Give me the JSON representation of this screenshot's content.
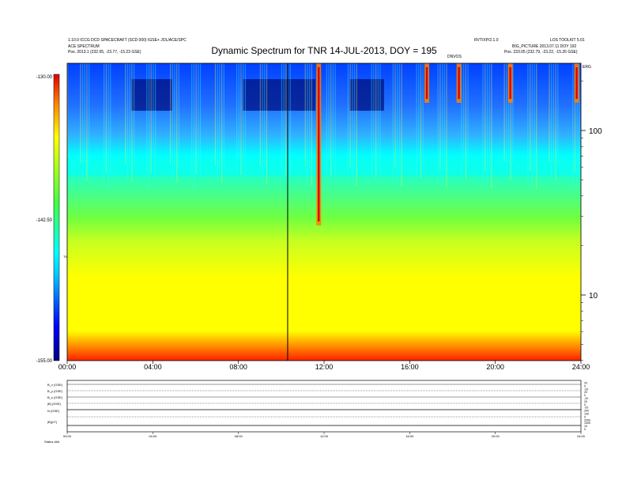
{
  "header": {
    "left_line1": "1.10.0 ICCG DCD SPACECRAFT (SCD 000) IGSE+ JOL/ACE/SPC",
    "left_line2": "ACE SPECTRUM",
    "left_line3": "Pos.     2013.1 (232.05, -23.77, -15.23 GSE)",
    "right_line1": "LOS TOOLKIT 5.01",
    "right_mid": "RVT/XP/2.1.0",
    "right_line2": "BIG_PICTURE 2013.07.11 DOY 192",
    "right_line3": "Pos.     233.05 (232.79, -23.22, -15.26 GSE)",
    "right_small": "ERG",
    "event_marker": "DNVOS"
  },
  "chart_data": {
    "type": "heatmap",
    "title": "Dynamic Spectrum for TNR 14-JUL-2013, DOY = 195",
    "x_tick_labels": [
      "00:00",
      "04:00",
      "08:00",
      "12:00",
      "16:00",
      "20:00",
      "24:00"
    ],
    "x_range_hours": [
      0,
      24
    ],
    "y_right_tick_labels": [
      "100",
      "10"
    ],
    "y_scale": "log",
    "colorbar": {
      "tick_labels": [
        "-130.00",
        "-142.50",
        "-155.00"
      ],
      "label": "TNR",
      "range": [
        -155,
        -130
      ]
    },
    "vertical_marker_hour": 10.3,
    "burst_hours": [
      11.75,
      16.8,
      18.3,
      20.7,
      23.8
    ]
  },
  "lower_panel": {
    "row_labels": [
      "B_x (GSE)",
      "B_y (GSE)",
      "B_z (GSE)",
      "|B| (GSE)",
      "N (GSE)",
      "|B|(nT)"
    ],
    "right_labels": [
      "20",
      "0",
      "-20",
      "20",
      "0",
      "-20",
      "20",
      "0",
      "-20",
      "200",
      "100",
      "0",
      "2000",
      "1000",
      "10",
      "0"
    ],
    "x_tick_labels": [
      "00:00",
      "04:00",
      "08:00",
      "12:00",
      "16:00",
      "20:00",
      "24:00"
    ],
    "footer_label": "Status   ###"
  }
}
